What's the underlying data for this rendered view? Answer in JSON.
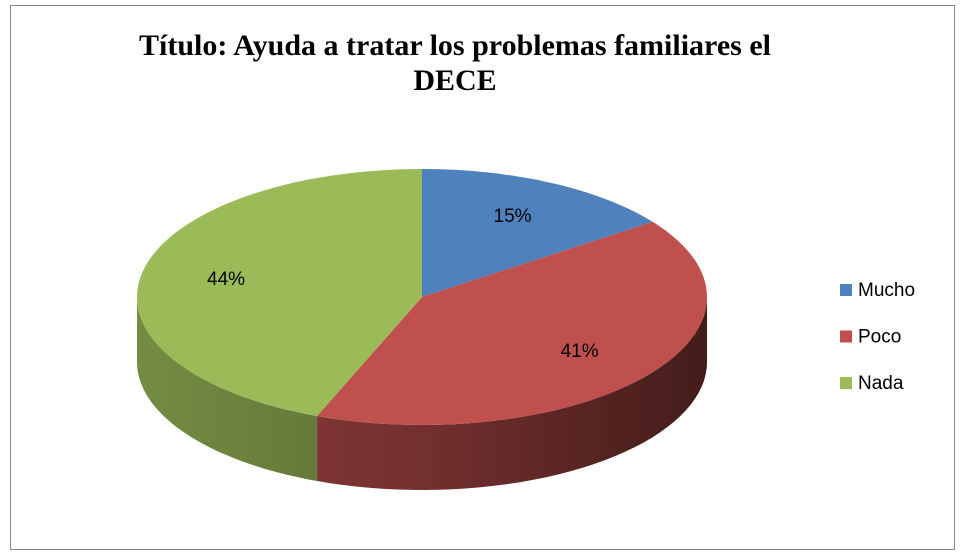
{
  "chart_data": {
    "type": "pie",
    "title": "Título: Ayuda a tratar los problemas familiares el DECE",
    "categories": [
      "Mucho",
      "Poco",
      "Nada"
    ],
    "values": [
      15,
      41,
      44
    ],
    "value_labels": [
      "15%",
      "41%",
      "44%"
    ],
    "colors": [
      "#4f81bd",
      "#c0504d",
      "#9bbb59"
    ],
    "legend": "right"
  }
}
